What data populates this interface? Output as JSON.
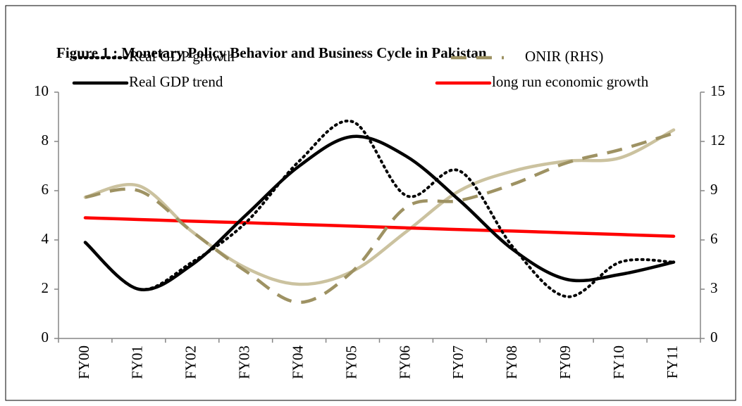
{
  "chart_data": {
    "type": "line",
    "title": "Figure 1 : Monetary Policy Behavior and Business Cycle in Pakistan",
    "categories": [
      "FY00",
      "FY01",
      "FY02",
      "FY03",
      "FY04",
      "FY05",
      "FY06",
      "FY07",
      "FY08",
      "FY09",
      "FY10",
      "FY11"
    ],
    "series": [
      {
        "name": "Real GDP growth",
        "color": "#000000",
        "line_style": "dotted",
        "values": [
          3.9,
          2.0,
          3.1,
          4.7,
          7.2,
          8.8,
          5.8,
          6.8,
          3.7,
          1.7,
          3.1,
          3.1
        ]
      },
      {
        "name": "ONIR (RHS)",
        "color": "#9e9263",
        "line_style": "dashed",
        "axis": "y2",
        "values": [
          8.6,
          9.0,
          6.5,
          4.1,
          2.2,
          4.1,
          8.0,
          8.4,
          9.4,
          10.7,
          11.5,
          12.5
        ]
      },
      {
        "name": "Real GDP trend",
        "color": "#000000",
        "line_style": "solid",
        "values": [
          3.9,
          2.0,
          3.0,
          5.0,
          7.0,
          8.2,
          7.4,
          5.6,
          3.6,
          2.4,
          2.6,
          3.1
        ]
      },
      {
        "name": "long run economic growth",
        "color": "#ff0000",
        "line_style": "solid",
        "values": [
          4.9,
          4.83,
          4.76,
          4.7,
          4.63,
          4.56,
          4.49,
          4.42,
          4.36,
          4.29,
          4.22,
          4.15
        ]
      },
      {
        "color": "#cbc29f",
        "line_style": "solid",
        "axis": "y2",
        "values": [
          8.6,
          9.3,
          6.5,
          4.3,
          3.3,
          4.1,
          6.5,
          9.0,
          10.2,
          10.8,
          11.0,
          12.7
        ]
      }
    ],
    "ylim": [
      0,
      10
    ],
    "yticks": [
      0,
      2,
      4,
      6,
      8,
      10
    ],
    "y2lim": [
      0,
      15
    ],
    "y2ticks": [
      0,
      3,
      6,
      9,
      12,
      15
    ],
    "grid": false
  }
}
